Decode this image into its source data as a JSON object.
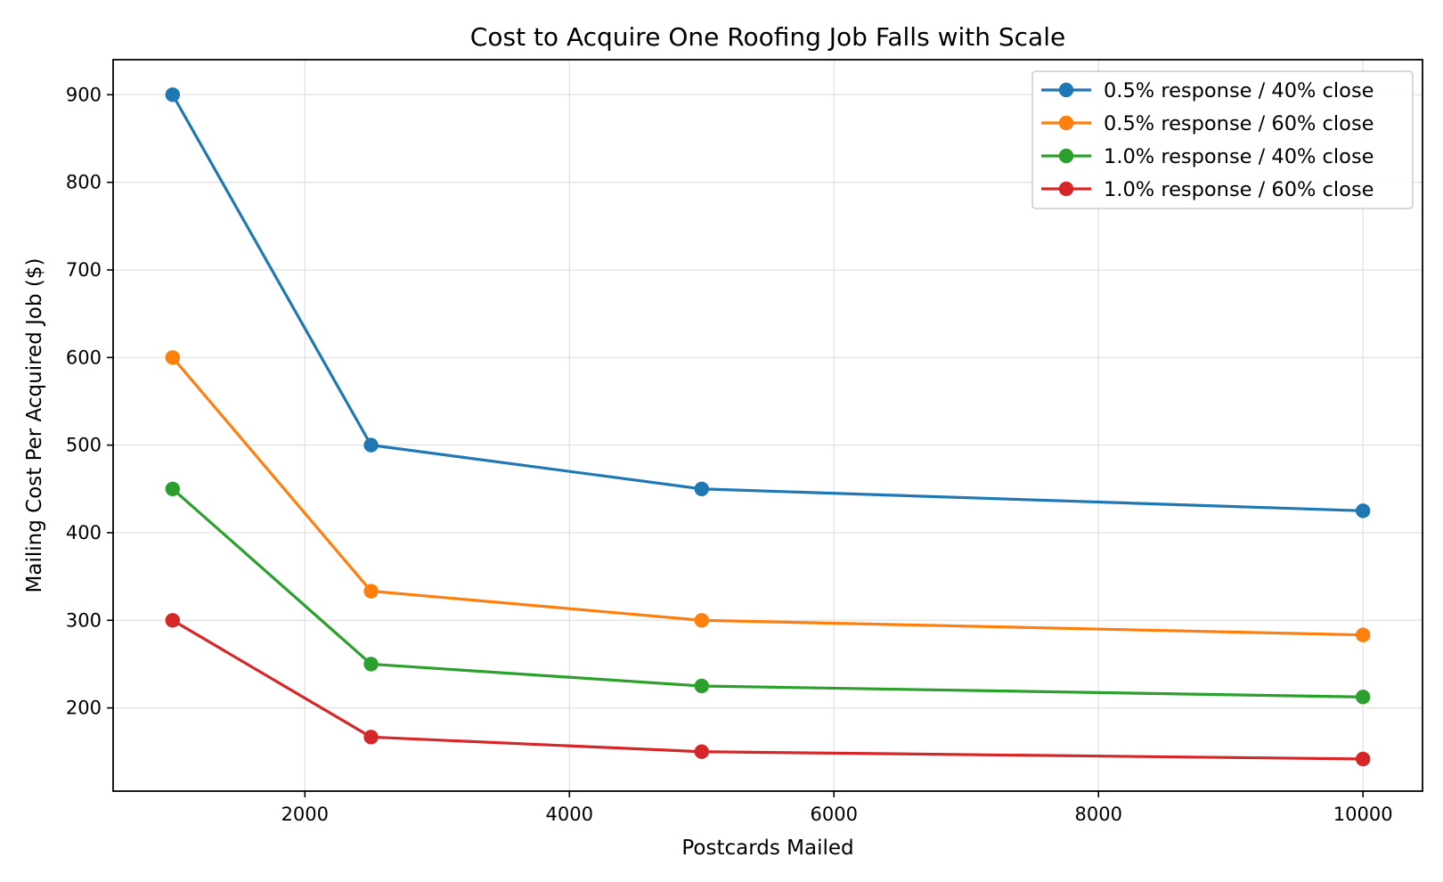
{
  "chart_data": {
    "type": "line",
    "title": "Cost to Acquire One Roofing Job Falls with Scale",
    "xlabel": "Postcards Mailed",
    "ylabel": "Mailing Cost Per Acquired Job ($)",
    "xlim": [
      550,
      10450
    ],
    "ylim": [
      105,
      940
    ],
    "x_ticks": [
      2000,
      4000,
      6000,
      8000,
      10000
    ],
    "y_ticks": [
      200,
      300,
      400,
      500,
      600,
      700,
      800,
      900
    ],
    "grid": true,
    "legend_position": "top-right",
    "x": [
      1000,
      2500,
      5000,
      10000
    ],
    "series": [
      {
        "name": "0.5% response / 40% close",
        "color": "#1f77b4",
        "values": [
          900,
          500,
          450,
          425
        ]
      },
      {
        "name": "0.5% response / 60% close",
        "color": "#ff7f0e",
        "values": [
          600,
          333.3,
          300,
          283.3
        ]
      },
      {
        "name": "1.0% response / 40% close",
        "color": "#2ca02c",
        "values": [
          450,
          250,
          225,
          212.5
        ]
      },
      {
        "name": "1.0% response / 60% close",
        "color": "#d62728",
        "values": [
          300,
          166.7,
          150,
          141.7
        ]
      }
    ]
  }
}
